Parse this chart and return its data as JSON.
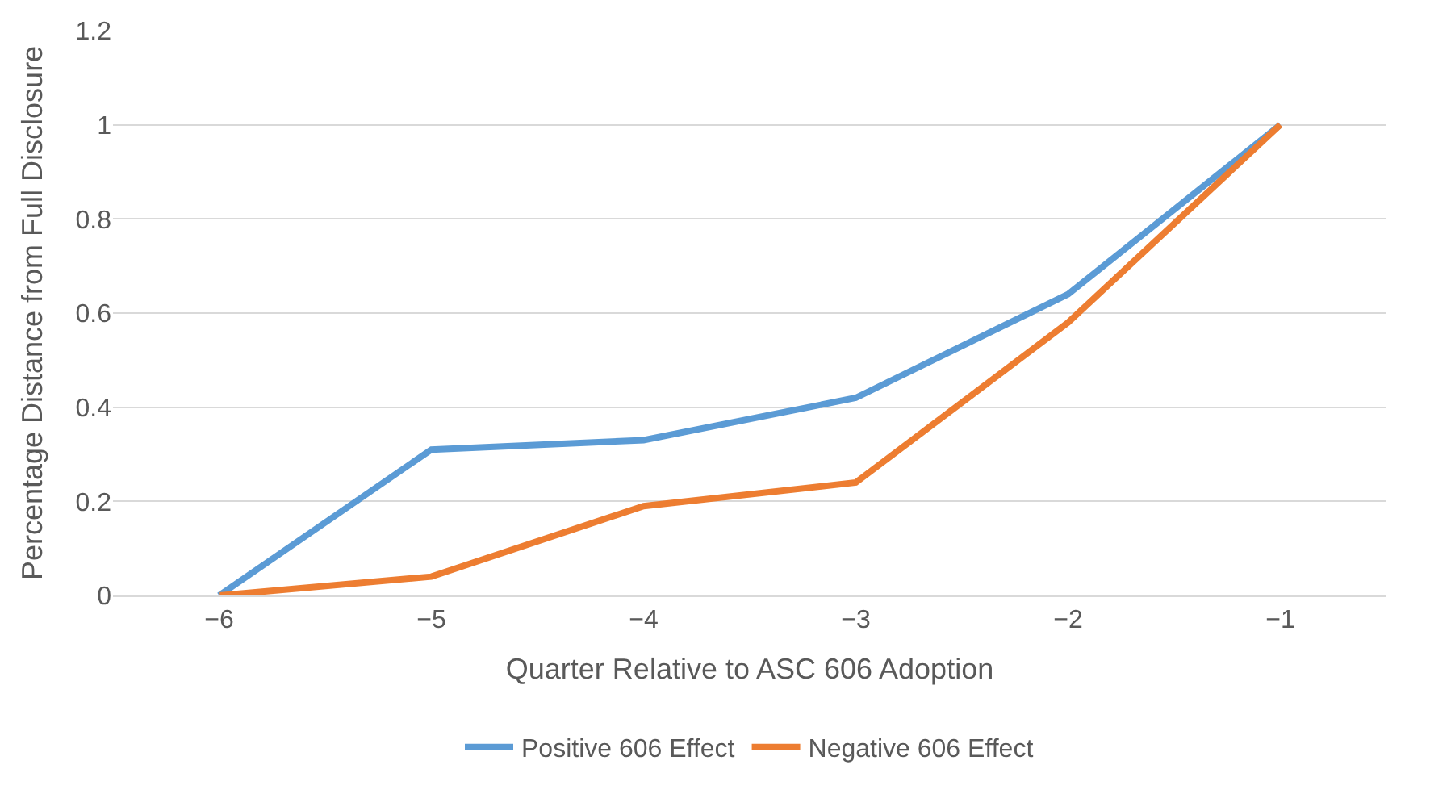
{
  "chart_data": {
    "type": "line",
    "xlabel": "Quarter Relative to ASC 606 Adoption",
    "ylabel": "Percentage Distance from Full Disclosure",
    "categories": [
      "−6",
      "−5",
      "−4",
      "−3",
      "−2",
      "−1"
    ],
    "series": [
      {
        "name": "Positive 606 Effect",
        "color": "#5b9bd5",
        "values": [
          0,
          0.31,
          0.33,
          0.42,
          0.64,
          1
        ]
      },
      {
        "name": "Negative 606 Effect",
        "color": "#ed7d31",
        "values": [
          0,
          0.04,
          0.19,
          0.24,
          0.58,
          1
        ]
      }
    ],
    "ylim": [
      0,
      1.2
    ],
    "yticks": [
      0,
      0.2,
      0.4,
      0.6,
      0.8,
      1,
      1.2
    ],
    "grid": "y",
    "legend": "bottom",
    "marker": "none",
    "line_style": "solid"
  }
}
